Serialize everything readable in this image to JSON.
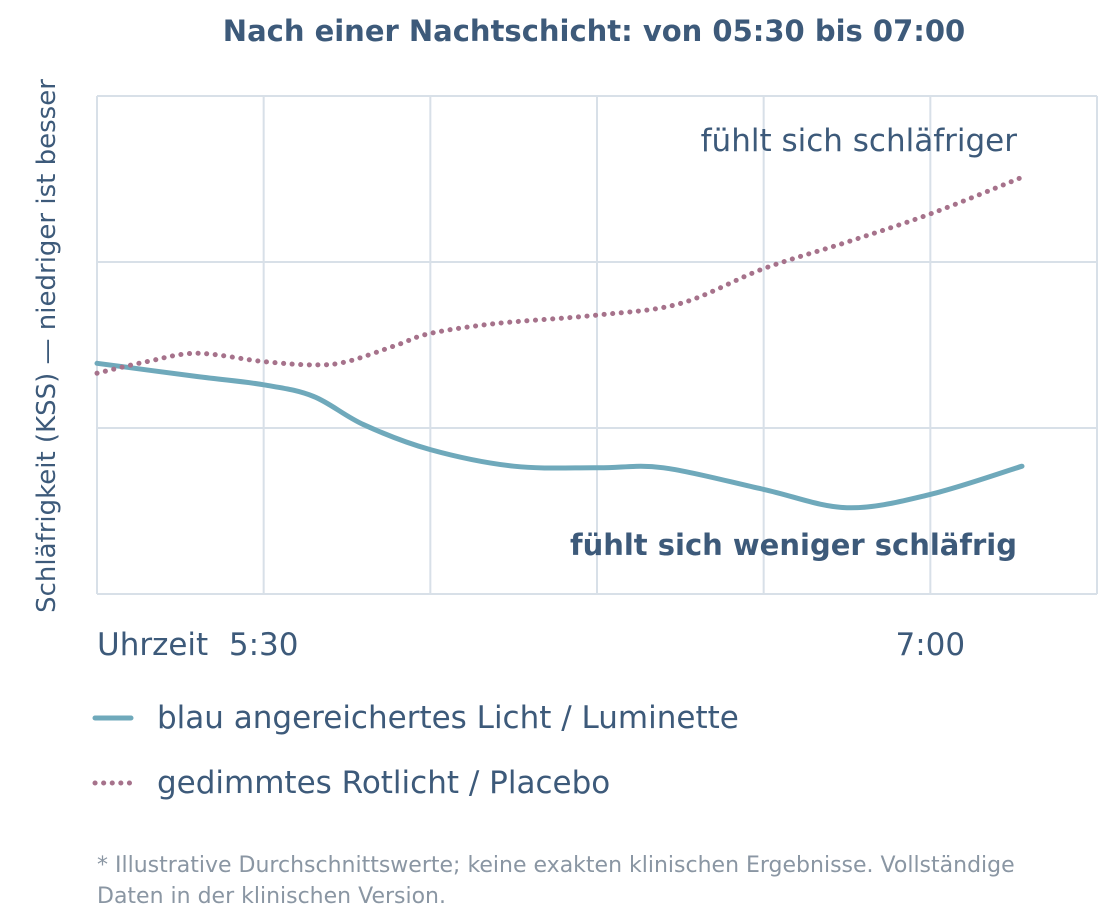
{
  "colors": {
    "text": "#3d5a7a",
    "grid": "#d8e0e8",
    "blue_series": "#6fa9bb",
    "red_series": "#a6728b",
    "footnote": "#8a96a3"
  },
  "chart_data": {
    "type": "line",
    "title": "Nach einer Nachtschicht: von 05:30 bis 07:00",
    "ylabel": "Schläfrigkeit (KSS) — niedriger ist besser",
    "xlabel": "Uhrzeit",
    "x_ticks": [
      {
        "label": "5:30",
        "x": 1
      },
      {
        "label": "7:00",
        "x": 5
      }
    ],
    "xlim": [
      0,
      6
    ],
    "ylim": [
      0,
      3
    ],
    "grid": true,
    "series": [
      {
        "name": "blau angereichertes Licht / Luminette",
        "style": "solid",
        "color": "#6fa9bb",
        "x": [
          0,
          0.6,
          1.0,
          1.3,
          1.6,
          2.0,
          2.5,
          3.0,
          3.4,
          4.0,
          4.5,
          5.0,
          5.55
        ],
        "y": [
          1.39,
          1.31,
          1.26,
          1.19,
          1.02,
          0.87,
          0.77,
          0.76,
          0.76,
          0.63,
          0.52,
          0.6,
          0.77
        ]
      },
      {
        "name": "gedimmtes Rotlicht / Placebo",
        "style": "dotted",
        "color": "#a6728b",
        "x": [
          0,
          0.3,
          0.6,
          1.0,
          1.3,
          1.5,
          1.8,
          2.0,
          2.4,
          3.0,
          3.5,
          4.0,
          4.5,
          5.0,
          5.55
        ],
        "y": [
          1.33,
          1.4,
          1.45,
          1.4,
          1.38,
          1.4,
          1.5,
          1.57,
          1.63,
          1.68,
          1.75,
          1.96,
          2.12,
          2.29,
          2.51
        ]
      }
    ],
    "annotations": {
      "top": "fühlt sich schläfriger",
      "bottom": "fühlt sich weniger schläfrig"
    }
  },
  "footnote": {
    "line1": "* Illustrative Durchschnittswerte; keine exakten klinischen Ergebnisse. Vollständige",
    "line2": "Daten in der klinischen Version."
  }
}
